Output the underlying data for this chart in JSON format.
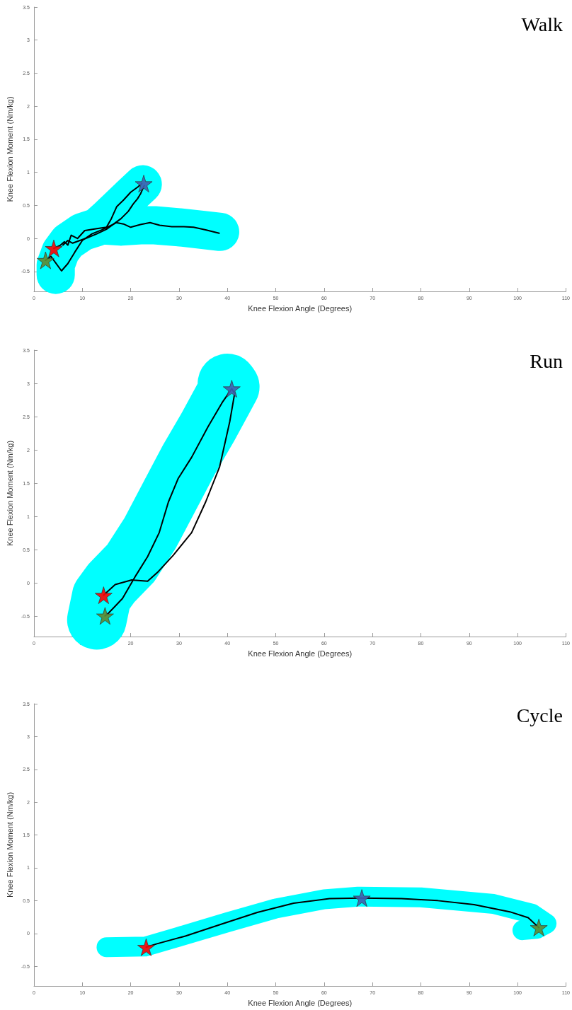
{
  "chart_data": [
    {
      "type": "line",
      "title": "Walk",
      "xlabel": "Knee Flexion Angle (Degrees)",
      "ylabel": "Knee Flexion Moment (Nm/kg)",
      "xlim": [
        0,
        110
      ],
      "xticks": [
        0,
        10,
        20,
        30,
        40,
        50,
        60,
        70,
        80,
        90,
        100,
        110
      ],
      "ylim": [
        -0.8,
        3.5
      ],
      "yticks": [
        -0.5,
        0,
        0.5,
        1,
        1.5,
        2,
        2.5,
        3,
        3.5
      ],
      "series": [
        {
          "color": "#00ffff",
          "x": [
            4.5,
            4.5,
            5.5,
            7,
            10,
            13,
            15,
            18,
            20,
            22.5,
            20,
            15,
            14,
            18,
            22,
            25,
            30,
            35,
            38.5
          ],
          "values": [
            -0.55,
            -0.4,
            -0.2,
            -0.05,
            0.1,
            0.17,
            0.3,
            0.5,
            0.65,
            0.82,
            0.65,
            0.3,
            0.2,
            0.18,
            0.2,
            0.2,
            0.17,
            0.13,
            0.1
          ]
        },
        {
          "color": "#000000",
          "x": [
            2.4,
            3.5,
            5.7,
            7,
            8.5,
            10,
            12,
            14,
            16,
            17,
            18.5,
            20,
            22,
            24,
            26,
            28.5,
            31,
            33,
            35.5,
            38.3
          ],
          "values": [
            -0.33,
            -0.27,
            -0.49,
            -0.38,
            -0.2,
            -0.03,
            0.07,
            0.13,
            0.2,
            0.24,
            0.22,
            0.17,
            0.21,
            0.24,
            0.2,
            0.18,
            0.18,
            0.17,
            0.13,
            0.08
          ]
        },
        {
          "color": "#000000",
          "x": [
            4.1,
            5.5,
            6.3,
            7,
            7.7,
            9,
            10.5,
            13,
            15,
            16,
            17.1,
            18.5,
            20,
            21.5,
            22.3
          ],
          "values": [
            -0.15,
            -0.1,
            -0.05,
            -0.1,
            0.05,
            0,
            0.12,
            0.15,
            0.17,
            0.3,
            0.48,
            0.58,
            0.7,
            0.78,
            0.83
          ]
        },
        {
          "color": "#000000",
          "x": [
            22.8,
            22,
            21.4,
            20.5,
            19.5,
            18,
            16.5,
            15,
            13,
            11,
            9.5,
            8,
            7,
            6
          ],
          "values": [
            0.8,
            0.67,
            0.6,
            0.52,
            0.41,
            0.3,
            0.22,
            0.14,
            0.07,
            0.01,
            -0.03,
            -0.07,
            -0.03,
            -0.1
          ]
        },
        {
          "type": "scatter",
          "marker": "star",
          "color": "#ff0000",
          "x": [
            4.1
          ],
          "values": [
            -0.15
          ]
        },
        {
          "type": "scatter",
          "marker": "star",
          "color": "#3f5fb0",
          "x": [
            22.7
          ],
          "values": [
            0.83
          ]
        },
        {
          "type": "scatter",
          "marker": "star",
          "color": "#5e8a30",
          "x": [
            2.4
          ],
          "values": [
            -0.33
          ]
        }
      ]
    },
    {
      "type": "line",
      "title": "Run",
      "xlabel": "Knee Flexion Angle (Degrees)",
      "ylabel": "Knee Flexion Moment (Nm/kg)",
      "xlim": [
        0,
        110
      ],
      "xticks": [
        0,
        10,
        20,
        30,
        40,
        50,
        60,
        70,
        80,
        90,
        100,
        110
      ],
      "ylim": [
        -0.8,
        3.5
      ],
      "yticks": [
        -0.5,
        0,
        0.5,
        1,
        1.5,
        2,
        2.5,
        3,
        3.5
      ],
      "series": [
        {
          "color": "#00ffff",
          "x": [
            13,
            14,
            16,
            20,
            24,
            28,
            32,
            36,
            39,
            40.5,
            40
          ],
          "values": [
            -0.55,
            -0.2,
            0,
            0.3,
            0.75,
            1.3,
            1.85,
            2.35,
            2.75,
            2.95,
            3.0
          ]
        },
        {
          "color": "#000000",
          "x": [
            14.7,
            15.4,
            18.3,
            21.1,
            23.5,
            25.9,
            27.8,
            29.8,
            32.6,
            36,
            38.9,
            40.9,
            41.5,
            40.5,
            38.4,
            35.5,
            32.6,
            28.8,
            25.5,
            23.5,
            20.2,
            16.8,
            14.4
          ],
          "values": [
            -0.49,
            -0.45,
            -0.23,
            0.12,
            0.4,
            0.76,
            1.22,
            1.57,
            1.89,
            2.35,
            2.71,
            2.92,
            2.85,
            2.43,
            1.75,
            1.22,
            0.76,
            0.42,
            0.16,
            0.03,
            0.05,
            -0.02,
            -0.18
          ]
        },
        {
          "type": "scatter",
          "marker": "star",
          "color": "#ff0000",
          "x": [
            14.4
          ],
          "values": [
            -0.18
          ]
        },
        {
          "type": "scatter",
          "marker": "star",
          "color": "#3f5fb0",
          "x": [
            40.9
          ],
          "values": [
            2.92
          ]
        },
        {
          "type": "scatter",
          "marker": "star",
          "color": "#5e8a30",
          "x": [
            14.7
          ],
          "values": [
            -0.49
          ]
        }
      ]
    },
    {
      "type": "line",
      "title": "Cycle",
      "xlabel": "Knee Flexion Angle (Degrees)",
      "ylabel": "Knee Flexion Moment (Nm/kg)",
      "xlim": [
        0,
        110
      ],
      "xticks": [
        0,
        10,
        20,
        30,
        40,
        50,
        60,
        70,
        80,
        90,
        100,
        110
      ],
      "ylim": [
        -0.8,
        3.5
      ],
      "yticks": [
        -0.5,
        0,
        0.5,
        1,
        1.5,
        2,
        2.5,
        3,
        3.5
      ],
      "series": [
        {
          "color": "#00ffff",
          "x": [
            15,
            23,
            30,
            40,
            50,
            60,
            67,
            80,
            95,
            103,
            106,
            104,
            101
          ],
          "values": [
            -0.21,
            -0.2,
            -0.05,
            0.17,
            0.38,
            0.52,
            0.56,
            0.55,
            0.45,
            0.3,
            0.15,
            0.07,
            0.05
          ]
        },
        {
          "color": "#000000",
          "x": [
            23.2,
            25.3,
            31.3,
            38.7,
            46.2,
            53.7,
            61.1,
            67.8,
            76,
            83.5,
            91,
            98.4,
            102.2,
            104.4
          ],
          "values": [
            -0.21,
            -0.16,
            -0.04,
            0.14,
            0.32,
            0.46,
            0.53,
            0.54,
            0.53,
            0.5,
            0.44,
            0.33,
            0.24,
            0.09
          ]
        },
        {
          "type": "scatter",
          "marker": "star",
          "color": "#ff0000",
          "x": [
            23.2
          ],
          "values": [
            -0.21
          ]
        },
        {
          "type": "scatter",
          "marker": "star",
          "color": "#3f5fb0",
          "x": [
            67.8
          ],
          "values": [
            0.54
          ]
        },
        {
          "type": "scatter",
          "marker": "star",
          "color": "#5e8a30",
          "x": [
            104.4
          ],
          "values": [
            0.09
          ]
        }
      ]
    }
  ]
}
